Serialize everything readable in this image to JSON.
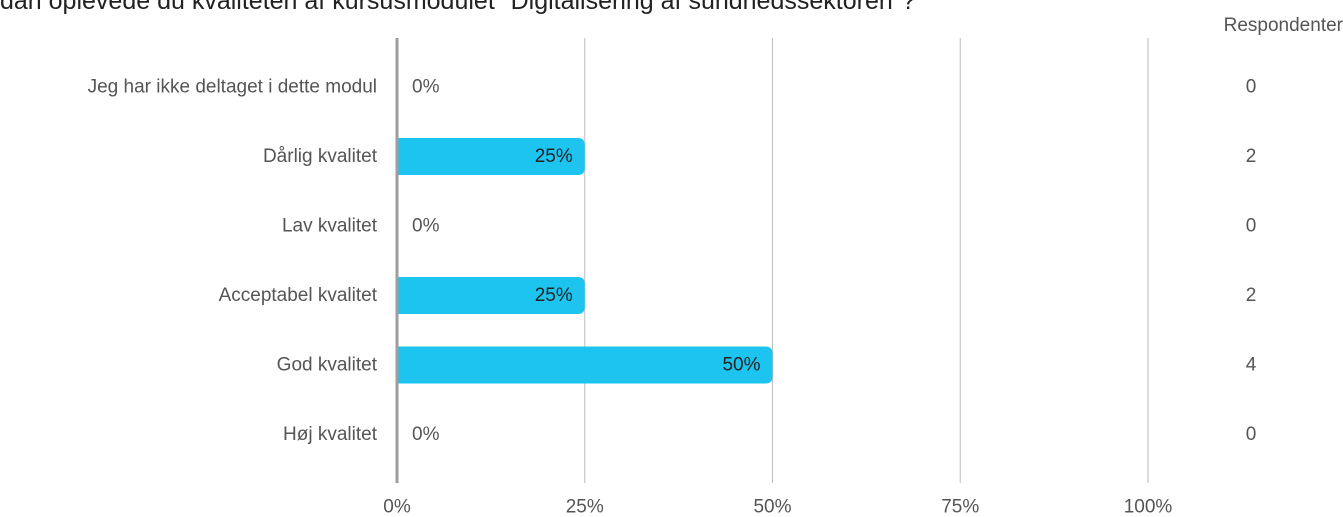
{
  "chart_data": {
    "type": "bar",
    "orientation": "horizontal",
    "title": "dan oplevede du kvaliteten af kursusmodulet \"Digitalisering af sundhedssektoren\"?",
    "categories": [
      "Jeg har ikke deltaget i dette modul",
      "Dårlig kvalitet",
      "Lav kvalitet",
      "Acceptabel kvalitet",
      "God kvalitet",
      "Høj kvalitet"
    ],
    "values": [
      0,
      25,
      0,
      25,
      50,
      0
    ],
    "value_labels": [
      "0%",
      "25%",
      "0%",
      "25%",
      "50%",
      "0%"
    ],
    "respondents_header": "Respondenter",
    "respondents": [
      "0",
      "2",
      "0",
      "2",
      "4",
      "0"
    ],
    "xlim": [
      0,
      100
    ],
    "xticks": [
      "0%",
      "25%",
      "50%",
      "75%",
      "100%"
    ],
    "xtick_values": [
      0,
      25,
      50,
      75,
      100
    ],
    "grid": true,
    "bar_color": "#1ec4f0"
  }
}
